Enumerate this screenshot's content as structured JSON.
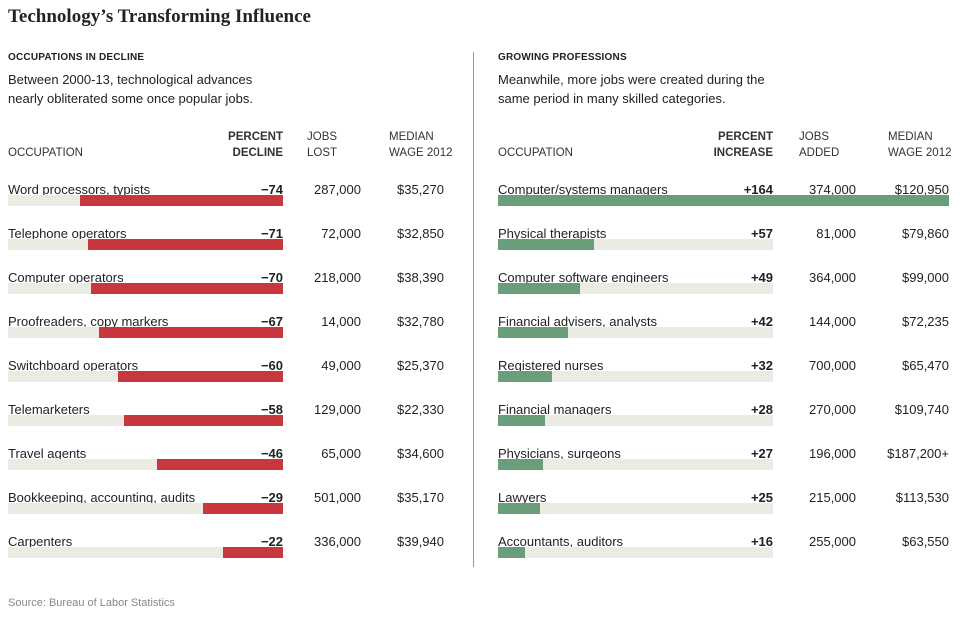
{
  "title": "Technology’s Transforming Influence",
  "source": "Source: Bureau of Labor Statistics",
  "colors": {
    "decline_bar": "#c9373e",
    "growth_bar": "#6a9e7a",
    "track": "#ebeae3"
  },
  "decline": {
    "heading": "OCCUPATIONS IN DECLINE",
    "description_lines": [
      "Between 2000-13, technological advances",
      "nearly obliterated some once popular jobs."
    ],
    "headers": {
      "occupation": "OCCUPATION",
      "percent_1": "PERCENT",
      "percent_2": "DECLINE",
      "jobs_1": "JOBS",
      "jobs_2": "LOST",
      "wage_1": "MEDIAN",
      "wage_2": "WAGE 2012"
    }
  },
  "growth": {
    "heading": "GROWING PROFESSIONS",
    "description_lines": [
      "Meanwhile, more jobs were created during the",
      "same period in many skilled categories."
    ],
    "headers": {
      "occupation": "OCCUPATION",
      "percent_1": "PERCENT",
      "percent_2": "INCREASE",
      "jobs_1": "JOBS",
      "jobs_2": "ADDED",
      "wage_1": "MEDIAN",
      "wage_2": "WAGE 2012"
    }
  },
  "chart_data": [
    {
      "type": "bar",
      "title": "OCCUPATIONS IN DECLINE",
      "scale_max": 100,
      "rows": [
        {
          "occupation": "Word processors, typists",
          "percent": -74,
          "percent_label": "−74",
          "jobs": "287,000",
          "wage": "$35,270"
        },
        {
          "occupation": "Telephone operators",
          "percent": -71,
          "percent_label": "−71",
          "jobs": "72,000",
          "wage": "$32,850"
        },
        {
          "occupation": "Computer operators",
          "percent": -70,
          "percent_label": "−70",
          "jobs": "218,000",
          "wage": "$38,390"
        },
        {
          "occupation": "Proofreaders, copy markers",
          "percent": -67,
          "percent_label": "−67",
          "jobs": "14,000",
          "wage": "$32,780"
        },
        {
          "occupation": "Switchboard operators",
          "percent": -60,
          "percent_label": "−60",
          "jobs": "49,000",
          "wage": "$25,370"
        },
        {
          "occupation": "Telemarketers",
          "percent": -58,
          "percent_label": "−58",
          "jobs": "129,000",
          "wage": "$22,330"
        },
        {
          "occupation": "Travel agents",
          "percent": -46,
          "percent_label": "−46",
          "jobs": "65,000",
          "wage": "$34,600"
        },
        {
          "occupation": "Bookkeeping, accounting, audits",
          "percent": -29,
          "percent_label": "−29",
          "jobs": "501,000",
          "wage": "$35,170"
        },
        {
          "occupation": "Carpenters",
          "percent": -22,
          "percent_label": "−22",
          "jobs": "336,000",
          "wage": "$39,940"
        }
      ]
    },
    {
      "type": "bar",
      "title": "GROWING PROFESSIONS",
      "scale_max": 164,
      "rows": [
        {
          "occupation": "Computer/systems managers",
          "percent": 164,
          "percent_label": "+164",
          "jobs": "374,000",
          "wage": "$120,950"
        },
        {
          "occupation": "Physical therapists",
          "percent": 57,
          "percent_label": "+57",
          "jobs": "81,000",
          "wage": "$79,860"
        },
        {
          "occupation": "Computer software engineers",
          "percent": 49,
          "percent_label": "+49",
          "jobs": "364,000",
          "wage": "$99,000"
        },
        {
          "occupation": "Financial advisers, analysts",
          "percent": 42,
          "percent_label": "+42",
          "jobs": "144,000",
          "wage": "$72,235"
        },
        {
          "occupation": "Registered nurses",
          "percent": 32,
          "percent_label": "+32",
          "jobs": "700,000",
          "wage": "$65,470"
        },
        {
          "occupation": "Financial managers",
          "percent": 28,
          "percent_label": "+28",
          "jobs": "270,000",
          "wage": "$109,740"
        },
        {
          "occupation": "Physicians, surgeons",
          "percent": 27,
          "percent_label": "+27",
          "jobs": "196,000",
          "wage": "$187,200+"
        },
        {
          "occupation": "Lawyers",
          "percent": 25,
          "percent_label": "+25",
          "jobs": "215,000",
          "wage": "$113,530"
        },
        {
          "occupation": "Accountants, auditors",
          "percent": 16,
          "percent_label": "+16",
          "jobs": "255,000",
          "wage": "$63,550"
        }
      ]
    }
  ]
}
